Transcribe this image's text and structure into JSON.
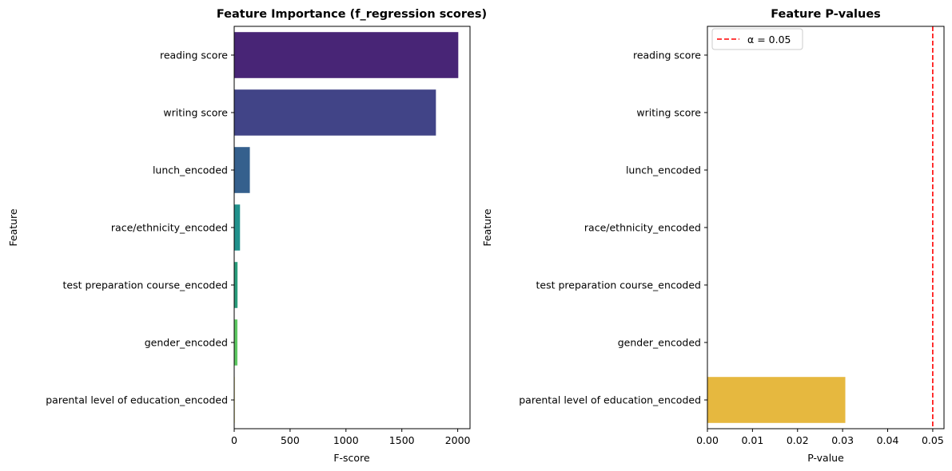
{
  "chart_data": [
    {
      "type": "bar",
      "orientation": "horizontal",
      "title": "Feature Importance (f_regression scores)",
      "xlabel": "F-score",
      "ylabel": "Feature",
      "categories": [
        "reading score",
        "writing score",
        "lunch_encoded",
        "race/ethnicity_encoded",
        "test preparation course_encoded",
        "gender_encoded",
        "parental level of education_encoded"
      ],
      "values": [
        2005,
        1805,
        140,
        52,
        30,
        29,
        4.7
      ],
      "colors": [
        "#482576",
        "#414487",
        "#35608d",
        "#21918c",
        "#2a9d7c",
        "#5ec962",
        "#fde725"
      ],
      "xlim": [
        0,
        2110
      ],
      "xticks": [
        0,
        500,
        1000,
        1500,
        2000
      ],
      "xtick_labels": [
        "0",
        "500",
        "1000",
        "1500",
        "2000"
      ],
      "grid": false
    },
    {
      "type": "bar",
      "orientation": "horizontal",
      "title": "Feature P-values",
      "xlabel": "P-value",
      "ylabel": "Feature",
      "categories": [
        "reading score",
        "writing score",
        "lunch_encoded",
        "race/ethnicity_encoded",
        "test preparation course_encoded",
        "gender_encoded",
        "parental level of education_encoded"
      ],
      "values": [
        0,
        0,
        0,
        0,
        0,
        0,
        0.0306
      ],
      "colors": [
        "#482576",
        "#414487",
        "#35608d",
        "#21918c",
        "#2a9d7c",
        "#5ec962",
        "#e6b83f"
      ],
      "xlim": [
        0,
        0.0525
      ],
      "xticks": [
        0,
        0.01,
        0.02,
        0.03,
        0.04,
        0.05
      ],
      "xtick_labels": [
        "0.00",
        "0.01",
        "0.02",
        "0.03",
        "0.04",
        "0.05"
      ],
      "reference_line": {
        "value": 0.05,
        "color": "#ff0000",
        "style": "dashed",
        "label": "α = 0.05"
      },
      "legend": {
        "position": "top-left",
        "entries": [
          "α = 0.05"
        ]
      },
      "grid": false
    }
  ]
}
